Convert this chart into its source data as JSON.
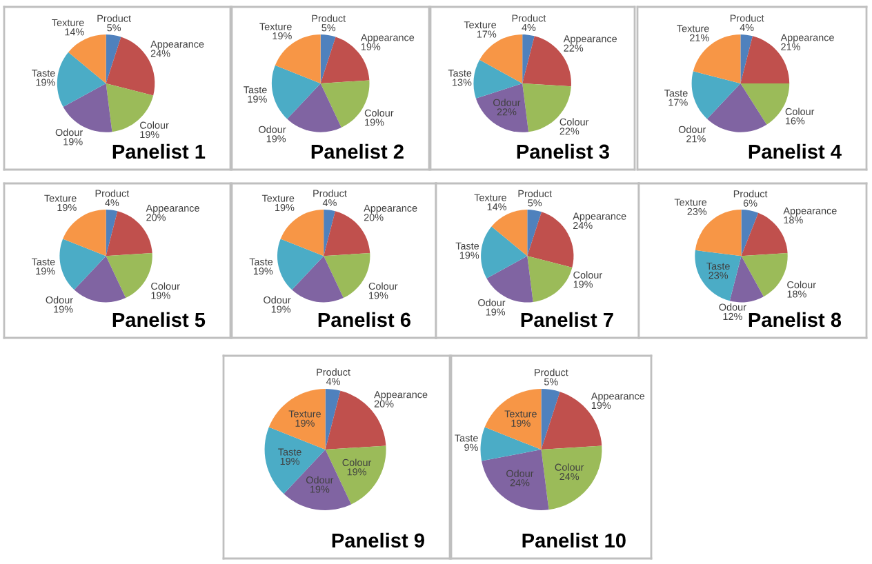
{
  "chart_data": [
    {
      "type": "pie",
      "title": "Panelist 1",
      "categories": [
        "Product",
        "Appearance",
        "Colour",
        "Odour",
        "Taste",
        "Texture"
      ],
      "values": [
        5,
        24,
        19,
        19,
        19,
        14
      ],
      "value_labels": [
        "5%",
        "24%",
        "19%",
        "19%",
        "19%",
        "14%"
      ],
      "colors": [
        "#4f81bd",
        "#c0504d",
        "#9bbb59",
        "#8064a2",
        "#4bacc6",
        "#f79646"
      ]
    },
    {
      "type": "pie",
      "title": "Panelist 2",
      "categories": [
        "Product",
        "Appearance",
        "Colour",
        "Odour",
        "Taste",
        "Texture"
      ],
      "values": [
        5,
        19,
        19,
        19,
        19,
        19
      ],
      "value_labels": [
        "5%",
        "19%",
        "19%",
        "19%",
        "19%",
        "19%"
      ],
      "colors": [
        "#4f81bd",
        "#c0504d",
        "#9bbb59",
        "#8064a2",
        "#4bacc6",
        "#f79646"
      ]
    },
    {
      "type": "pie",
      "title": "Panelist 3",
      "categories": [
        "Product",
        "Appearance",
        "Colour",
        "Odour",
        "Taste",
        "Texture"
      ],
      "values": [
        4,
        22,
        22,
        22,
        13,
        17
      ],
      "value_labels": [
        "4%",
        "22%",
        "22%",
        "22%",
        "13%",
        "17%"
      ],
      "colors": [
        "#4f81bd",
        "#c0504d",
        "#9bbb59",
        "#8064a2",
        "#4bacc6",
        "#f79646"
      ]
    },
    {
      "type": "pie",
      "title": "Panelist 4",
      "categories": [
        "Product",
        "Appearance",
        "Colour",
        "Odour",
        "Taste",
        "Texture"
      ],
      "values": [
        4,
        21,
        16,
        21,
        17,
        21
      ],
      "value_labels": [
        "4%",
        "21%",
        "16%",
        "21%",
        "17%",
        "21%"
      ],
      "colors": [
        "#4f81bd",
        "#c0504d",
        "#9bbb59",
        "#8064a2",
        "#4bacc6",
        "#f79646"
      ]
    },
    {
      "type": "pie",
      "title": "Panelist 5",
      "categories": [
        "Product",
        "Appearance",
        "Colour",
        "Odour",
        "Taste",
        "Texture"
      ],
      "values": [
        4,
        20,
        19,
        19,
        19,
        19
      ],
      "value_labels": [
        "4%",
        "20%",
        "19%",
        "19%",
        "19%",
        "19%"
      ],
      "colors": [
        "#4f81bd",
        "#c0504d",
        "#9bbb59",
        "#8064a2",
        "#4bacc6",
        "#f79646"
      ]
    },
    {
      "type": "pie",
      "title": "Panelist 6",
      "categories": [
        "Product",
        "Appearance",
        "Colour",
        "Odour",
        "Taste",
        "Texture"
      ],
      "values": [
        4,
        20,
        19,
        19,
        19,
        19
      ],
      "value_labels": [
        "4%",
        "20%",
        "19%",
        "19%",
        "19%",
        "19%"
      ],
      "colors": [
        "#4f81bd",
        "#c0504d",
        "#9bbb59",
        "#8064a2",
        "#4bacc6",
        "#f79646"
      ]
    },
    {
      "type": "pie",
      "title": "Panelist 7",
      "categories": [
        "Product",
        "Appearance",
        "Colour",
        "Odour",
        "Taste",
        "Texture"
      ],
      "values": [
        5,
        24,
        19,
        19,
        19,
        14
      ],
      "value_labels": [
        "5%",
        "24%",
        "19%",
        "19%",
        "19%",
        "14%"
      ],
      "colors": [
        "#4f81bd",
        "#c0504d",
        "#9bbb59",
        "#8064a2",
        "#4bacc6",
        "#f79646"
      ]
    },
    {
      "type": "pie",
      "title": "Panelist 8",
      "categories": [
        "Product",
        "Appearance",
        "Colour",
        "Odour",
        "Taste",
        "Texture"
      ],
      "values": [
        6,
        18,
        18,
        12,
        23,
        23
      ],
      "value_labels": [
        "6%",
        "18%",
        "18%",
        "12%",
        "23%",
        "23%"
      ],
      "colors": [
        "#4f81bd",
        "#c0504d",
        "#9bbb59",
        "#8064a2",
        "#4bacc6",
        "#f79646"
      ]
    },
    {
      "type": "pie",
      "title": "Panelist 9",
      "categories": [
        "Product",
        "Appearance",
        "Colour",
        "Odour",
        "Taste",
        "Texture"
      ],
      "values": [
        4,
        20,
        19,
        19,
        19,
        19
      ],
      "value_labels": [
        "4%",
        "20%",
        "19%",
        "19%",
        "19%",
        "19%"
      ],
      "colors": [
        "#4f81bd",
        "#c0504d",
        "#9bbb59",
        "#8064a2",
        "#4bacc6",
        "#f79646"
      ]
    },
    {
      "type": "pie",
      "title": "Panelist 10",
      "categories": [
        "Product",
        "Appearance",
        "Colour",
        "Odour",
        "Taste",
        "Texture"
      ],
      "values": [
        5,
        19,
        24,
        24,
        9,
        19
      ],
      "value_labels": [
        "5%",
        "19%",
        "24%",
        "24%",
        "9%",
        "19%"
      ],
      "colors": [
        "#4f81bd",
        "#c0504d",
        "#9bbb59",
        "#8064a2",
        "#4bacc6",
        "#f79646"
      ]
    }
  ]
}
